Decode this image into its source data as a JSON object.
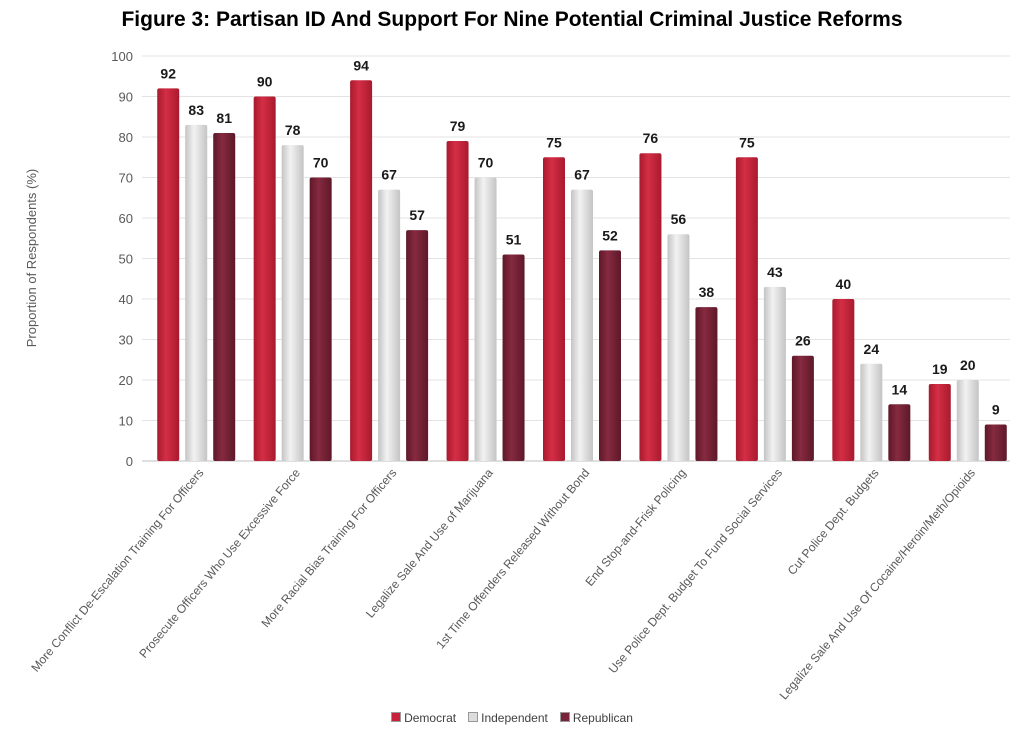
{
  "chart_data": {
    "type": "bar",
    "title": "Figure 3: Partisan ID And Support For Nine Potential Criminal Justice Reforms",
    "xlabel": "",
    "ylabel": "Proportion of Respondents (%)",
    "ylim": [
      0,
      100
    ],
    "yticks": [
      0,
      10,
      20,
      30,
      40,
      50,
      60,
      70,
      80,
      90,
      100
    ],
    "grid": true,
    "legend_position": "bottom",
    "categories": [
      "More Conflict De-Escalation Training For Officers",
      "Prosecute Officers Who Use Excessive Force",
      "More Racial Bias Training For Officers",
      "Legalize Sale And Use of Marijuana",
      "1st Time Offenders Released Without Bond",
      "End Stop-and-Frisk Policing",
      "Use Police Dept. Budget To Fund Social Services",
      "Cut Police Dept. Budgets",
      "Legalize Sale And Use Of Cocaine/Heroin/Meth/Opioids"
    ],
    "series": [
      {
        "name": "Democrat",
        "color": "#c8233a",
        "values": [
          92,
          90,
          94,
          79,
          75,
          76,
          75,
          40,
          19
        ]
      },
      {
        "name": "Independent",
        "color": "#dcdcdc",
        "values": [
          83,
          78,
          67,
          70,
          67,
          56,
          43,
          24,
          20
        ]
      },
      {
        "name": "Republican",
        "color": "#7a2238",
        "values": [
          81,
          70,
          57,
          51,
          52,
          38,
          26,
          14,
          9
        ]
      }
    ]
  }
}
